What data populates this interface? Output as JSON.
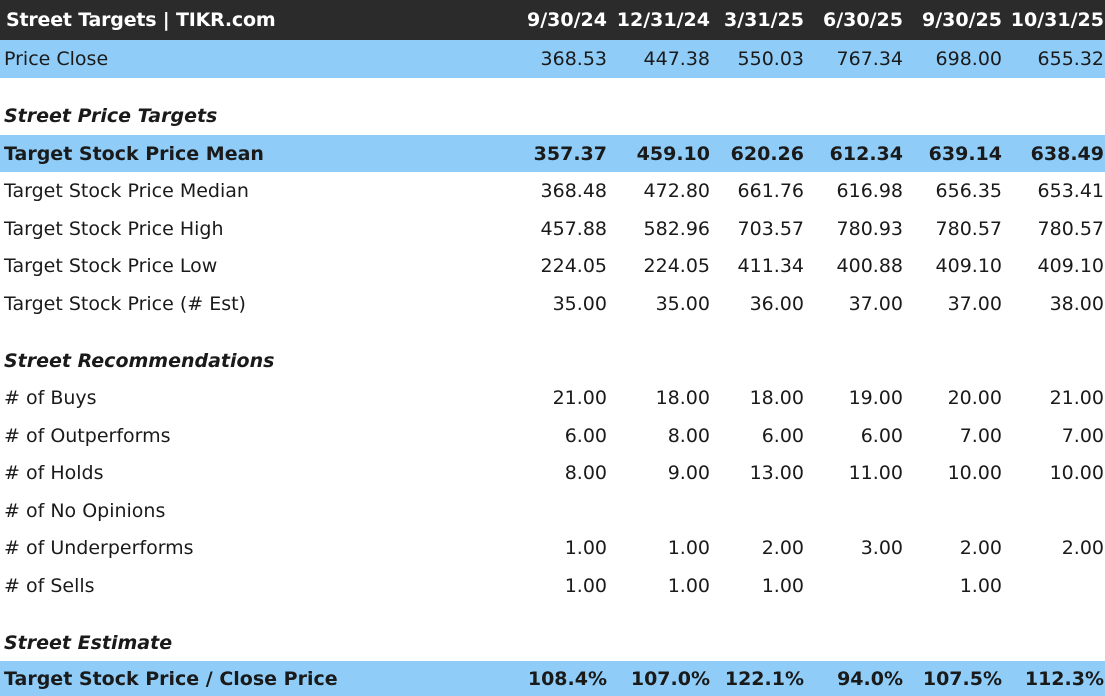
{
  "header": {
    "title": "Street Targets | TIKR.com",
    "dates": [
      "9/30/24",
      "12/31/24",
      "3/31/25",
      "6/30/25",
      "9/30/25",
      "10/31/25"
    ]
  },
  "price_close": {
    "label": "Price Close",
    "values": [
      "368.53",
      "447.38",
      "550.03",
      "767.34",
      "698.00",
      "655.32"
    ]
  },
  "sections": {
    "price_targets": "Street Price Targets",
    "recommendations": "Street Recommendations",
    "estimate": "Street Estimate"
  },
  "target_rows": [
    {
      "label": "Target Stock Price Mean",
      "values": [
        "357.37",
        "459.10",
        "620.26",
        "612.34",
        "639.14",
        "638.49"
      ]
    },
    {
      "label": "Target Stock Price Median",
      "values": [
        "368.48",
        "472.80",
        "661.76",
        "616.98",
        "656.35",
        "653.41"
      ]
    },
    {
      "label": "Target Stock Price High",
      "values": [
        "457.88",
        "582.96",
        "703.57",
        "780.93",
        "780.57",
        "780.57"
      ]
    },
    {
      "label": "Target Stock Price Low",
      "values": [
        "224.05",
        "224.05",
        "411.34",
        "400.88",
        "409.10",
        "409.10"
      ]
    },
    {
      "label": "Target Stock Price (# Est)",
      "values": [
        "35.00",
        "35.00",
        "36.00",
        "37.00",
        "37.00",
        "38.00"
      ]
    }
  ],
  "recommendation_rows": [
    {
      "label": "# of Buys",
      "values": [
        "21.00",
        "18.00",
        "18.00",
        "19.00",
        "20.00",
        "21.00"
      ]
    },
    {
      "label": "# of Outperforms",
      "values": [
        "6.00",
        "8.00",
        "6.00",
        "6.00",
        "7.00",
        "7.00"
      ]
    },
    {
      "label": "# of Holds",
      "values": [
        "8.00",
        "9.00",
        "13.00",
        "11.00",
        "10.00",
        "10.00"
      ]
    },
    {
      "label": "# of No Opinions",
      "values": [
        "",
        "",
        "",
        "",
        "",
        ""
      ]
    },
    {
      "label": "# of Underperforms",
      "values": [
        "1.00",
        "1.00",
        "2.00",
        "3.00",
        "2.00",
        "2.00"
      ]
    },
    {
      "label": "# of Sells",
      "values": [
        "1.00",
        "1.00",
        "1.00",
        "",
        "1.00",
        ""
      ]
    }
  ],
  "estimate_row": {
    "label": "Target Stock Price / Close Price",
    "values": [
      "108.4%",
      "107.0%",
      "122.1%",
      "94.0%",
      "107.5%",
      "112.3%"
    ]
  },
  "colors": {
    "header_bg": "#2b2b2b",
    "highlight_bg": "#8fcdf8",
    "text": "#1a1a1a"
  }
}
